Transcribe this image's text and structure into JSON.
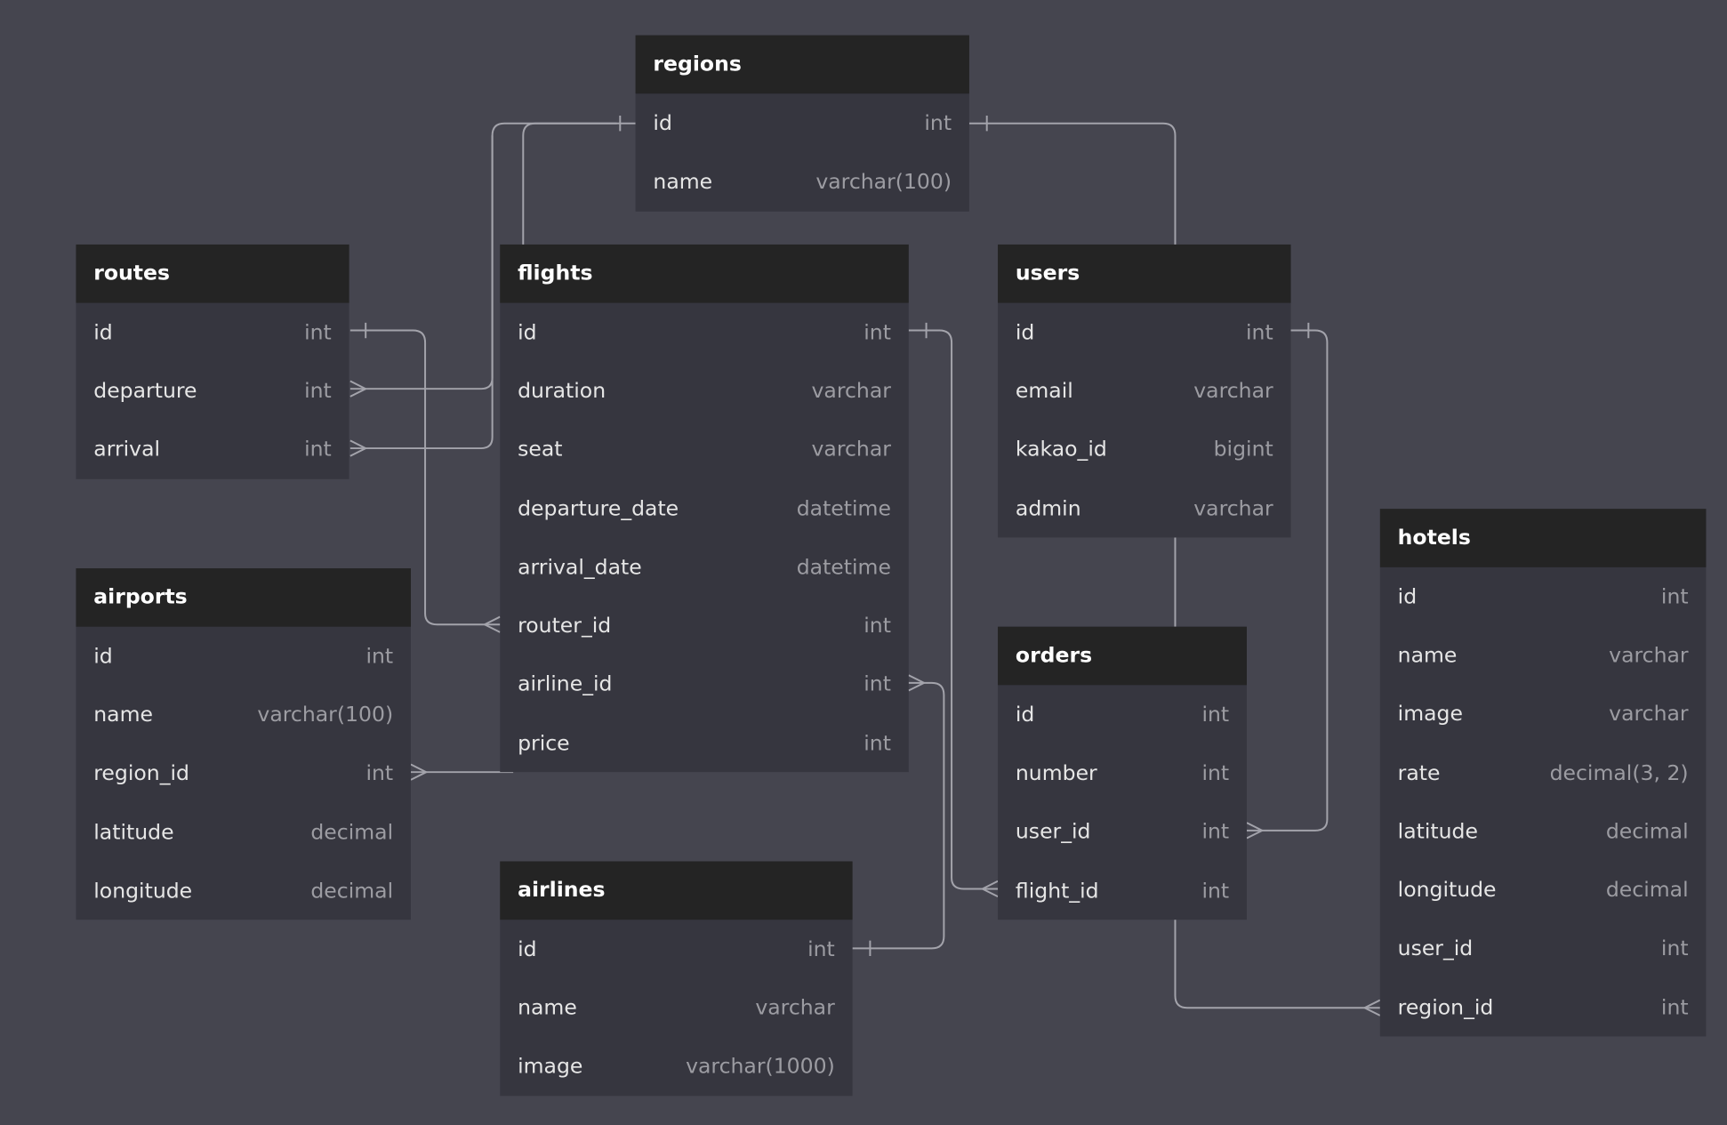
{
  "colors": {
    "background": "#45454f",
    "header": "#242424",
    "body": "#36363f",
    "line": "#a3a3ab"
  },
  "tables": [
    {
      "name": "regions",
      "fields": [
        [
          "id",
          "int"
        ],
        [
          "name",
          "varchar(100)"
        ]
      ]
    },
    {
      "name": "routes",
      "fields": [
        [
          "id",
          "int"
        ],
        [
          "departure",
          "int"
        ],
        [
          "arrival",
          "int"
        ]
      ]
    },
    {
      "name": "flights",
      "fields": [
        [
          "id",
          "int"
        ],
        [
          "duration",
          "varchar"
        ],
        [
          "seat",
          "varchar"
        ],
        [
          "departure_date",
          "datetime"
        ],
        [
          "arrival_date",
          "datetime"
        ],
        [
          "router_id",
          "int"
        ],
        [
          "airline_id",
          "int"
        ],
        [
          "price",
          "int"
        ]
      ]
    },
    {
      "name": "users",
      "fields": [
        [
          "id",
          "int"
        ],
        [
          "email",
          "varchar"
        ],
        [
          "kakao_id",
          "bigint"
        ],
        [
          "admin",
          "varchar"
        ]
      ]
    },
    {
      "name": "hotels",
      "fields": [
        [
          "id",
          "int"
        ],
        [
          "name",
          "varchar"
        ],
        [
          "image",
          "varchar"
        ],
        [
          "rate",
          "decimal(3, 2)"
        ],
        [
          "latitude",
          "decimal"
        ],
        [
          "longitude",
          "decimal"
        ],
        [
          "user_id",
          "int"
        ],
        [
          "region_id",
          "int"
        ]
      ]
    },
    {
      "name": "airports",
      "fields": [
        [
          "id",
          "int"
        ],
        [
          "name",
          "varchar(100)"
        ],
        [
          "region_id",
          "int"
        ],
        [
          "latitude",
          "decimal"
        ],
        [
          "longitude",
          "decimal"
        ]
      ]
    },
    {
      "name": "orders",
      "fields": [
        [
          "id",
          "int"
        ],
        [
          "number",
          "int"
        ],
        [
          "user_id",
          "int"
        ],
        [
          "flight_id",
          "int"
        ]
      ]
    },
    {
      "name": "airlines",
      "fields": [
        [
          "id",
          "int"
        ],
        [
          "name",
          "varchar"
        ],
        [
          "image",
          "varchar(1000)"
        ]
      ]
    }
  ],
  "relations": [
    {
      "from": "routes.departure",
      "to": "regions.id",
      "type": "many-to-one"
    },
    {
      "from": "routes.arrival",
      "to": "regions.id",
      "type": "many-to-one"
    },
    {
      "from": "flights",
      "to": "regions.id",
      "type": "link"
    },
    {
      "from": "users",
      "to": "regions.id",
      "type": "link"
    },
    {
      "from": "flights.router_id",
      "to": "routes.id",
      "type": "many-to-one"
    },
    {
      "from": "orders.flight_id",
      "to": "flights.id",
      "type": "many-to-one"
    },
    {
      "from": "orders.user_id",
      "to": "users.id",
      "type": "many-to-one"
    },
    {
      "from": "flights.airline_id",
      "to": "airlines.id",
      "type": "many-to-one"
    },
    {
      "from": "airports.region_id",
      "to": "flights",
      "type": "many-to-one"
    },
    {
      "from": "orders",
      "to": "users",
      "type": "link"
    },
    {
      "from": "hotels.region_id",
      "to": "orders",
      "type": "many-to-one"
    }
  ]
}
